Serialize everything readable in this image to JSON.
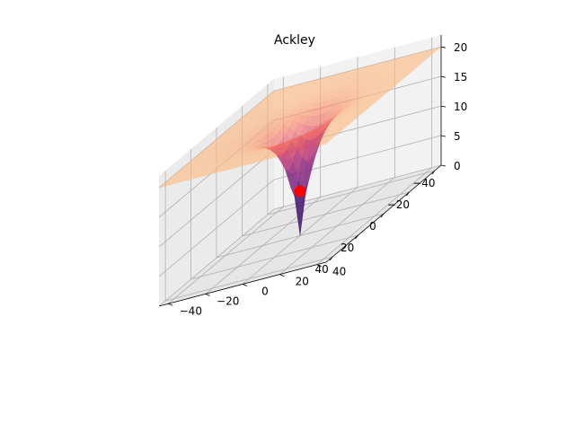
{
  "chart_data": {
    "type": "surface3d",
    "title": "Ackley",
    "function": "ackley",
    "xlim": [
      -45,
      45
    ],
    "ylim": [
      -45,
      45
    ],
    "zlim": [
      0,
      22
    ],
    "x_ticks": [
      -40,
      -20,
      0,
      20,
      40
    ],
    "y_ticks": [
      -40,
      -20,
      0,
      20,
      40
    ],
    "z_ticks": [
      0,
      5,
      10,
      15,
      20
    ],
    "grid": true,
    "colormap": "magma",
    "surface_alpha": 0.6,
    "marker": {
      "x": 0,
      "y": 0,
      "z": 7.5,
      "color": "#ff0000"
    }
  }
}
